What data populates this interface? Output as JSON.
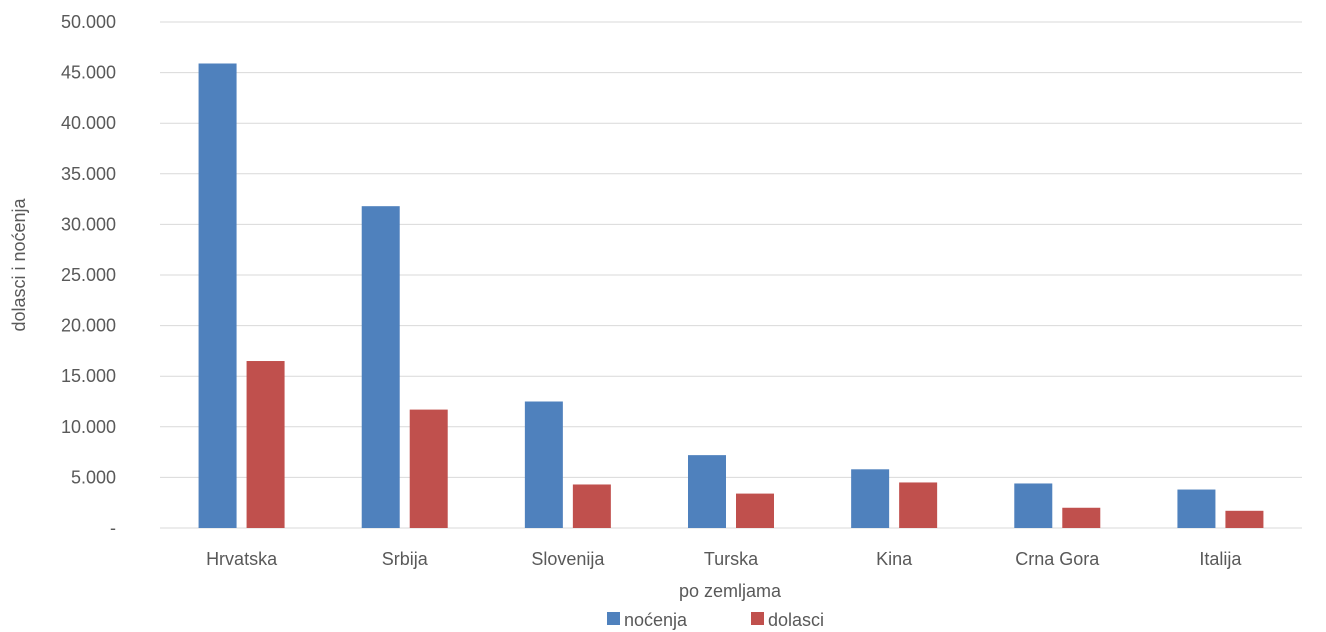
{
  "chart_data": {
    "type": "bar",
    "categories": [
      "Hrvatska",
      "Srbija",
      "Slovenija",
      "Turska",
      "Kina",
      "Crna Gora",
      "Italija"
    ],
    "series": [
      {
        "name": "noćenja",
        "color": "#4f81bd",
        "values": [
          45900,
          31800,
          12500,
          7200,
          5800,
          4400,
          3800
        ]
      },
      {
        "name": "dolasci",
        "color": "#c0504d",
        "values": [
          16500,
          11700,
          4300,
          3400,
          4500,
          2000,
          1700
        ]
      }
    ],
    "xlabel": "po zemljama",
    "ylabel": "dolasci i noćenja",
    "ylim": [
      0,
      50000
    ],
    "yticks": [
      0,
      5000,
      10000,
      15000,
      20000,
      25000,
      30000,
      35000,
      40000,
      45000,
      50000
    ],
    "ytick_labels": [
      "-",
      "5.000",
      "10.000",
      "15.000",
      "20.000",
      "25.000",
      "30.000",
      "35.000",
      "40.000",
      "45.000",
      "50.000"
    ],
    "grid": true,
    "legend_position": "bottom"
  }
}
